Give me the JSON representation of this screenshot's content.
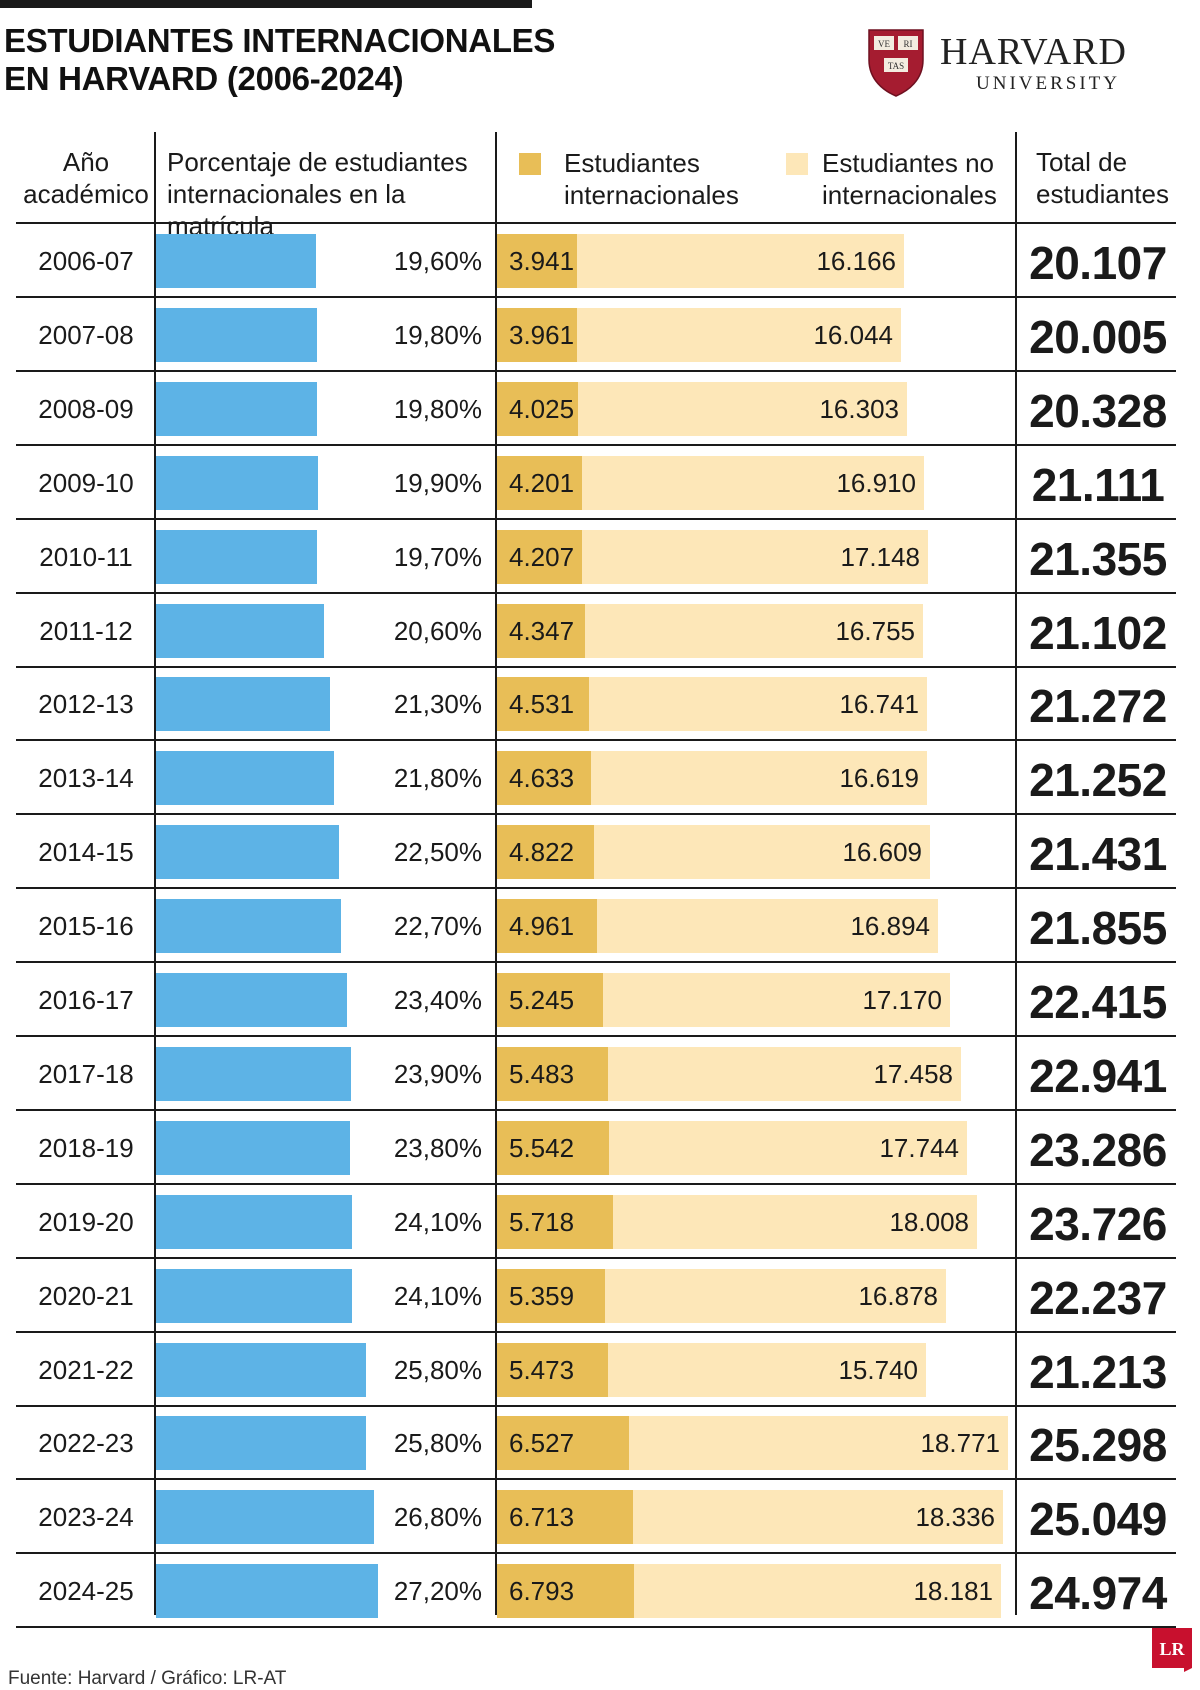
{
  "title_line1": "ESTUDIANTES INTERNACIONALES",
  "title_line2": "EN HARVARD (2006-2024)",
  "logo": {
    "word": "HARVARD",
    "sub": "UNIVERSITY",
    "shield_text": [
      "VE",
      "RI",
      "TAS"
    ],
    "shield_color": "#a51c30"
  },
  "headers": {
    "year_line1": "Año",
    "year_line2": "académico",
    "pct_line1": "Porcentaje de estudiantes",
    "pct_line2": "internacionales en la matrícula",
    "intl_line1": "Estudiantes",
    "intl_line2": "internacionales",
    "nonintl_line1": "Estudiantes no",
    "nonintl_line2": "internacionales",
    "total_line1": "Total de",
    "total_line2": "estudiantes"
  },
  "colors": {
    "percent_bar": "#5db3e6",
    "international": "#e8be57",
    "non_international": "#fde7b8"
  },
  "chart_data": {
    "type": "table",
    "title": "ESTUDIANTES INTERNACIONALES EN HARVARD (2006-2024)",
    "columns": [
      "Año académico",
      "Porcentaje de estudiantes internacionales en la matrícula",
      "Estudiantes internacionales",
      "Estudiantes no internacionales",
      "Total de estudiantes"
    ],
    "rows": [
      {
        "year": "2006-07",
        "pct": 19.6,
        "pct_label": "19,60%",
        "intl": 3941,
        "intl_label": "3.941",
        "nonintl": 16166,
        "nonintl_label": "16.166",
        "total_label": "20.107"
      },
      {
        "year": "2007-08",
        "pct": 19.8,
        "pct_label": "19,80%",
        "intl": 3961,
        "intl_label": "3.961",
        "nonintl": 16044,
        "nonintl_label": "16.044",
        "total_label": "20.005"
      },
      {
        "year": "2008-09",
        "pct": 19.8,
        "pct_label": "19,80%",
        "intl": 4025,
        "intl_label": "4.025",
        "nonintl": 16303,
        "nonintl_label": "16.303",
        "total_label": "20.328"
      },
      {
        "year": "2009-10",
        "pct": 19.9,
        "pct_label": "19,90%",
        "intl": 4201,
        "intl_label": "4.201",
        "nonintl": 16910,
        "nonintl_label": "16.910",
        "total_label": "21.111"
      },
      {
        "year": "2010-11",
        "pct": 19.7,
        "pct_label": "19,70%",
        "intl": 4207,
        "intl_label": "4.207",
        "nonintl": 17148,
        "nonintl_label": "17.148",
        "total_label": "21.355"
      },
      {
        "year": "2011-12",
        "pct": 20.6,
        "pct_label": "20,60%",
        "intl": 4347,
        "intl_label": "4.347",
        "nonintl": 16755,
        "nonintl_label": "16.755",
        "total_label": "21.102"
      },
      {
        "year": "2012-13",
        "pct": 21.3,
        "pct_label": "21,30%",
        "intl": 4531,
        "intl_label": "4.531",
        "nonintl": 16741,
        "nonintl_label": "16.741",
        "total_label": "21.272"
      },
      {
        "year": "2013-14",
        "pct": 21.8,
        "pct_label": "21,80%",
        "intl": 4633,
        "intl_label": "4.633",
        "nonintl": 16619,
        "nonintl_label": "16.619",
        "total_label": "21.252"
      },
      {
        "year": "2014-15",
        "pct": 22.5,
        "pct_label": "22,50%",
        "intl": 4822,
        "intl_label": "4.822",
        "nonintl": 16609,
        "nonintl_label": "16.609",
        "total_label": "21.431"
      },
      {
        "year": "2015-16",
        "pct": 22.7,
        "pct_label": "22,70%",
        "intl": 4961,
        "intl_label": "4.961",
        "nonintl": 16894,
        "nonintl_label": "16.894",
        "total_label": "21.855"
      },
      {
        "year": "2016-17",
        "pct": 23.4,
        "pct_label": "23,40%",
        "intl": 5245,
        "intl_label": "5.245",
        "nonintl": 17170,
        "nonintl_label": "17.170",
        "total_label": "22.415"
      },
      {
        "year": "2017-18",
        "pct": 23.9,
        "pct_label": "23,90%",
        "intl": 5483,
        "intl_label": "5.483",
        "nonintl": 17458,
        "nonintl_label": "17.458",
        "total_label": "22.941"
      },
      {
        "year": "2018-19",
        "pct": 23.8,
        "pct_label": "23,80%",
        "intl": 5542,
        "intl_label": "5.542",
        "nonintl": 17744,
        "nonintl_label": "17.744",
        "total_label": "23.286"
      },
      {
        "year": "2019-20",
        "pct": 24.1,
        "pct_label": "24,10%",
        "intl": 5718,
        "intl_label": "5.718",
        "nonintl": 18008,
        "nonintl_label": "18.008",
        "total_label": "23.726"
      },
      {
        "year": "2020-21",
        "pct": 24.1,
        "pct_label": "24,10%",
        "intl": 5359,
        "intl_label": "5.359",
        "nonintl": 16878,
        "nonintl_label": "16.878",
        "total_label": "22.237"
      },
      {
        "year": "2021-22",
        "pct": 25.8,
        "pct_label": "25,80%",
        "intl": 5473,
        "intl_label": "5.473",
        "nonintl": 15740,
        "nonintl_label": "15.740",
        "total_label": "21.213"
      },
      {
        "year": "2022-23",
        "pct": 25.8,
        "pct_label": "25,80%",
        "intl": 6527,
        "intl_label": "6.527",
        "nonintl": 18771,
        "nonintl_label": "18.771",
        "total_label": "25.298"
      },
      {
        "year": "2023-24",
        "pct": 26.8,
        "pct_label": "26,80%",
        "intl": 6713,
        "intl_label": "6.713",
        "nonintl": 18336,
        "nonintl_label": "18.336",
        "total_label": "25.049"
      },
      {
        "year": "2024-25",
        "pct": 27.2,
        "pct_label": "27,20%",
        "intl": 6793,
        "intl_label": "6.793",
        "nonintl": 18181,
        "nonintl_label": "18.181",
        "total_label": "24.974"
      }
    ]
  },
  "source": "Fuente: Harvard / Gráfico: LR-AT",
  "brand_badge": "LR",
  "brand_color": "#c8102e"
}
